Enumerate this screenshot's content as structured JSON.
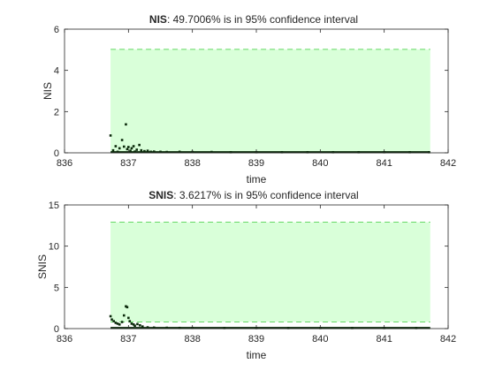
{
  "colors": {
    "band_fill": "#d9ffd9",
    "bound_line": "#33cc33",
    "points": "#0b2a0b",
    "axes": "#262626"
  },
  "chart_data": [
    {
      "type": "scatter",
      "title": {
        "name": "NIS",
        "rest": ": 49.7006% is in 95% confidence interval"
      },
      "xlabel": "time",
      "ylabel": "NIS",
      "xlim": [
        836,
        842
      ],
      "ylim": [
        0,
        6
      ],
      "xticks": [
        "836",
        "837",
        "838",
        "839",
        "840",
        "841",
        "842"
      ],
      "yticks": [
        "0",
        "2",
        "4",
        "6"
      ],
      "confidence_band": {
        "x": [
          836.72,
          841.72
        ],
        "lower": 0.0,
        "upper": 5.02
      },
      "points": [
        [
          836.72,
          0.84
        ],
        [
          836.76,
          0.12
        ],
        [
          836.8,
          0.32
        ],
        [
          836.83,
          0.05
        ],
        [
          836.86,
          0.22
        ],
        [
          836.9,
          0.62
        ],
        [
          836.93,
          0.3
        ],
        [
          836.96,
          1.38
        ],
        [
          836.98,
          0.18
        ],
        [
          837.0,
          0.28
        ],
        [
          837.03,
          0.1
        ],
        [
          837.05,
          0.22
        ],
        [
          837.08,
          0.32
        ],
        [
          837.1,
          0.06
        ],
        [
          837.13,
          0.15
        ],
        [
          837.17,
          0.38
        ],
        [
          837.2,
          0.12
        ],
        [
          837.25,
          0.08
        ],
        [
          837.3,
          0.1
        ],
        [
          837.35,
          0.05
        ],
        [
          837.4,
          0.06
        ],
        [
          837.5,
          0.05
        ],
        [
          837.6,
          0.04
        ],
        [
          837.8,
          0.05
        ],
        [
          838.0,
          0.04
        ],
        [
          838.3,
          0.04
        ],
        [
          838.6,
          0.03
        ],
        [
          839.0,
          0.03
        ],
        [
          839.4,
          0.03
        ],
        [
          839.8,
          0.03
        ],
        [
          840.2,
          0.03
        ],
        [
          840.6,
          0.03
        ],
        [
          841.0,
          0.03
        ],
        [
          841.4,
          0.03
        ],
        [
          841.7,
          0.03
        ]
      ],
      "dense_trace": {
        "x": [
          836.72,
          841.72
        ],
        "y": 0.03
      }
    },
    {
      "type": "scatter",
      "title": {
        "name": "SNIS",
        "rest": ": 3.6217% is in 95% confidence interval"
      },
      "xlabel": "time",
      "ylabel": "SNIS",
      "xlim": [
        836,
        842
      ],
      "ylim": [
        0,
        15
      ],
      "xticks": [
        "836",
        "837",
        "838",
        "839",
        "840",
        "841",
        "842"
      ],
      "yticks": [
        "0",
        "5",
        "10",
        "15"
      ],
      "confidence_band": {
        "x": [
          836.72,
          841.72
        ],
        "lower": 0.82,
        "upper": 12.9
      },
      "points": [
        [
          836.72,
          1.5
        ],
        [
          836.74,
          1.1
        ],
        [
          836.77,
          0.9
        ],
        [
          836.8,
          0.7
        ],
        [
          836.83,
          0.6
        ],
        [
          836.86,
          0.5
        ],
        [
          836.9,
          0.8
        ],
        [
          836.93,
          1.6
        ],
        [
          836.96,
          2.7
        ],
        [
          836.98,
          2.6
        ],
        [
          837.0,
          1.3
        ],
        [
          837.02,
          0.9
        ],
        [
          837.05,
          0.6
        ],
        [
          837.08,
          0.5
        ],
        [
          837.1,
          0.35
        ],
        [
          837.14,
          0.55
        ],
        [
          837.18,
          0.4
        ],
        [
          837.22,
          0.25
        ],
        [
          837.3,
          0.15
        ],
        [
          837.4,
          0.12
        ],
        [
          837.6,
          0.1
        ],
        [
          837.8,
          0.08
        ],
        [
          838.0,
          0.08
        ],
        [
          838.5,
          0.07
        ],
        [
          839.0,
          0.07
        ],
        [
          839.5,
          0.07
        ],
        [
          840.0,
          0.07
        ],
        [
          840.5,
          0.07
        ],
        [
          841.0,
          0.07
        ],
        [
          841.5,
          0.07
        ]
      ],
      "dense_trace": {
        "x": [
          836.72,
          841.72
        ],
        "y": 0.07
      }
    }
  ]
}
